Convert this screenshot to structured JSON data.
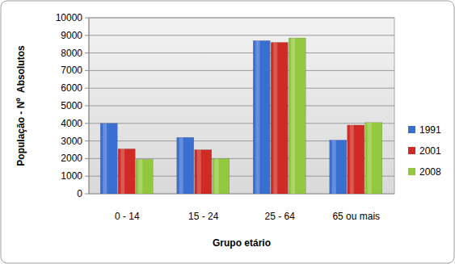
{
  "chart_data": {
    "type": "bar",
    "x_label": "Grupo etário",
    "y_label": "População - Nº  Absolutos",
    "categories": [
      "0 - 14",
      "15 - 24",
      "25 - 64",
      "65 ou mais"
    ],
    "series": [
      {
        "name": "1991",
        "color": "#3a6fd2",
        "values": [
          4000,
          3200,
          8700,
          3050
        ]
      },
      {
        "name": "2001",
        "color": "#d02a24",
        "values": [
          2550,
          2500,
          8600,
          3900
        ]
      },
      {
        "name": "2008",
        "color": "#92c83e",
        "values": [
          1950,
          2000,
          8850,
          4050
        ]
      }
    ],
    "ylim": [
      0,
      10000
    ],
    "yticks": [
      0,
      1000,
      2000,
      3000,
      4000,
      5000,
      6000,
      7000,
      8000,
      9000,
      10000
    ],
    "grid": true,
    "legend": "right"
  }
}
